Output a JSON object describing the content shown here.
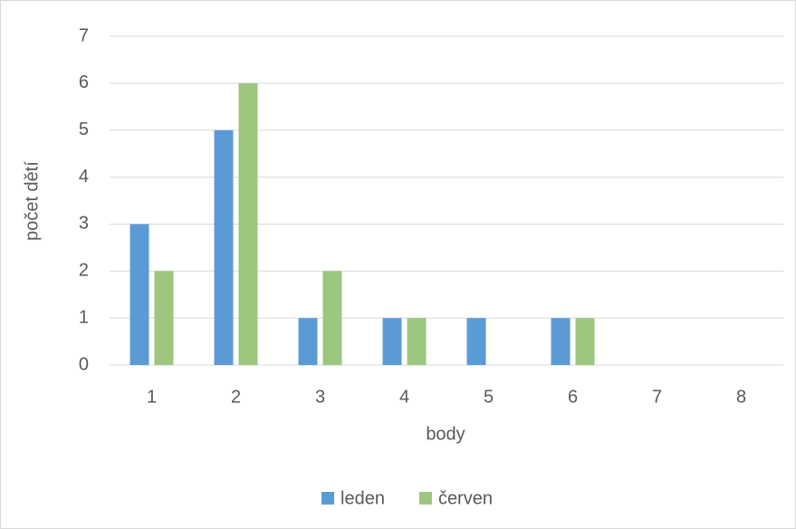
{
  "chart_data": {
    "type": "bar",
    "categories": [
      "1",
      "2",
      "3",
      "4",
      "5",
      "6",
      "7",
      "8"
    ],
    "series": [
      {
        "name": "leden",
        "color": "#5b9bd5",
        "values": [
          3,
          5,
          1,
          1,
          1,
          1,
          0,
          0
        ]
      },
      {
        "name": "červen",
        "color": "#9dc67f",
        "values": [
          2,
          6,
          2,
          1,
          0,
          1,
          0,
          0
        ]
      }
    ],
    "x_label": "body",
    "y_label": "počet dětí",
    "ylim": [
      0,
      7
    ],
    "yticks": [
      0,
      1,
      2,
      3,
      4,
      5,
      6,
      7
    ],
    "grid": true,
    "legend": "bottom"
  }
}
